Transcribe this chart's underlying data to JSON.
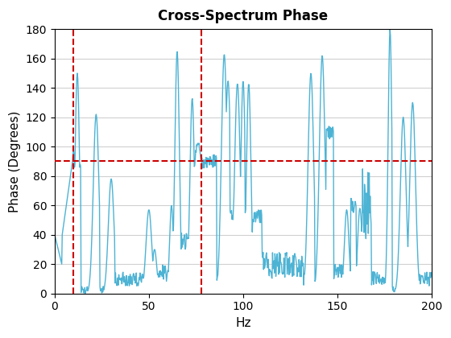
{
  "title": "Cross-Spectrum Phase",
  "xlabel": "Hz",
  "ylabel": "Phase (Degrees)",
  "xlim": [
    0,
    200
  ],
  "ylim": [
    0,
    180
  ],
  "vline1_x": 10,
  "vline2_x": 78,
  "hline_y": 90,
  "line_color": "#4db3d4",
  "dashed_color": "#cc0000",
  "background_color": "#ffffff",
  "grid_color": "#d0d0d0",
  "seed": 42
}
